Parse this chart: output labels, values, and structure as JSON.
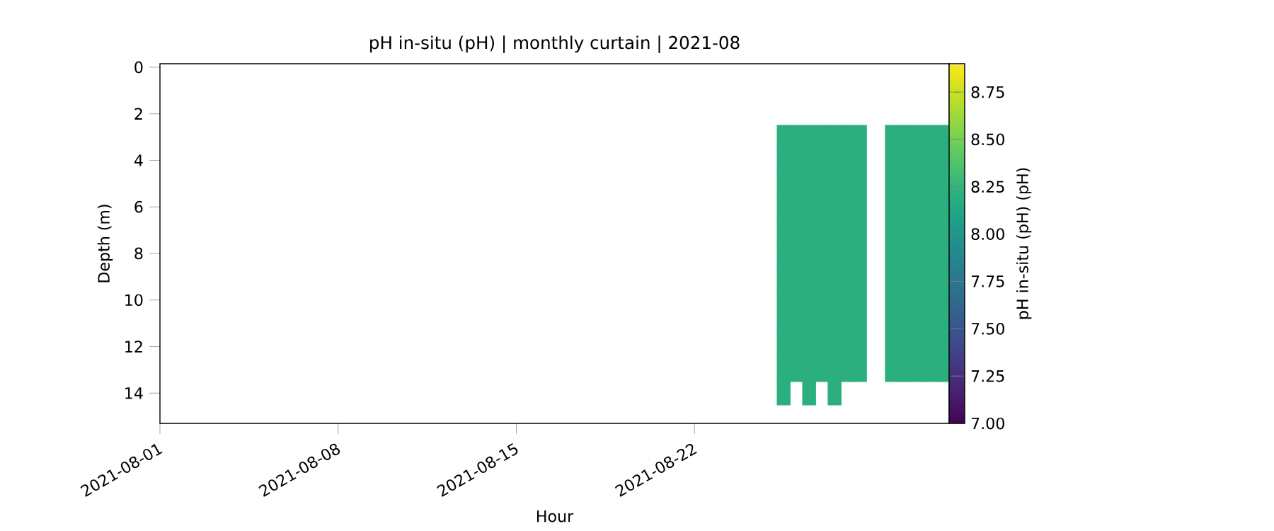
{
  "chart_data": {
    "type": "scatter",
    "title": "pH in-situ (pH) | monthly curtain | 2021-08",
    "xlabel": "Hour",
    "ylabel": "Depth (m)",
    "clabel": "pH in-situ (pH) (pH)",
    "xlim": [
      "2021-08-01",
      "2021-09-01"
    ],
    "xticks": [
      "2021-08-01",
      "2021-08-08",
      "2021-08-15",
      "2021-08-22"
    ],
    "ylim": [
      15.3,
      -0.15
    ],
    "yticks": [
      0,
      2,
      4,
      6,
      8,
      10,
      12,
      14
    ],
    "clim": [
      7.0,
      8.9
    ],
    "cticks": [
      {
        "value": 7.0,
        "label": "7.00"
      },
      {
        "value": 7.25,
        "label": "7.25"
      },
      {
        "value": 7.5,
        "label": "7.50"
      },
      {
        "value": 7.75,
        "label": "7.75"
      },
      {
        "value": 8.0,
        "label": "8.00"
      },
      {
        "value": 8.25,
        "label": "8.25"
      },
      {
        "value": 8.5,
        "label": "8.50"
      },
      {
        "value": 8.75,
        "label": "8.75"
      }
    ],
    "marker": "square",
    "series": [
      {
        "x": [
          "2021-08-25T12:00",
          "2021-08-25T12:00",
          "2021-08-25T12:00",
          "2021-08-25T12:00",
          "2021-08-25T12:00",
          "2021-08-25T12:00",
          "2021-08-25T12:00",
          "2021-08-25T12:00",
          "2021-08-25T12:00",
          "2021-08-25T12:00",
          "2021-08-25T12:00",
          "2021-08-25T12:00"
        ],
        "values": [
          3,
          4,
          5,
          6,
          7,
          8,
          9,
          10,
          11,
          12,
          13,
          14
        ],
        "cvalues": [
          8.2,
          8.2,
          8.2,
          8.2,
          8.2,
          8.2,
          8.2,
          8.2,
          8.2,
          8.2,
          8.2,
          8.2
        ]
      },
      {
        "x": [
          "2021-08-26T00:00",
          "2021-08-26T00:00",
          "2021-08-26T00:00",
          "2021-08-26T00:00",
          "2021-08-26T00:00",
          "2021-08-26T00:00",
          "2021-08-26T00:00",
          "2021-08-26T00:00",
          "2021-08-26T00:00",
          "2021-08-26T00:00",
          "2021-08-26T00:00"
        ],
        "values": [
          3,
          4,
          5,
          6,
          7,
          8,
          9,
          10,
          11,
          12,
          13
        ],
        "cvalues": [
          8.2,
          8.2,
          8.2,
          8.2,
          8.2,
          8.2,
          8.2,
          8.2,
          8.2,
          8.2,
          8.2
        ]
      },
      {
        "x": [
          "2021-08-26T12:00",
          "2021-08-26T12:00",
          "2021-08-26T12:00",
          "2021-08-26T12:00",
          "2021-08-26T12:00",
          "2021-08-26T12:00",
          "2021-08-26T12:00",
          "2021-08-26T12:00",
          "2021-08-26T12:00",
          "2021-08-26T12:00",
          "2021-08-26T12:00",
          "2021-08-26T12:00"
        ],
        "values": [
          3,
          4,
          5,
          6,
          7,
          8,
          9,
          10,
          11,
          12,
          13,
          14
        ],
        "cvalues": [
          8.2,
          8.2,
          8.2,
          8.2,
          8.2,
          8.2,
          8.2,
          8.2,
          8.2,
          8.2,
          8.2,
          8.2
        ]
      },
      {
        "x": [
          "2021-08-27T00:00",
          "2021-08-27T00:00",
          "2021-08-27T00:00",
          "2021-08-27T00:00",
          "2021-08-27T00:00",
          "2021-08-27T00:00",
          "2021-08-27T00:00",
          "2021-08-27T00:00",
          "2021-08-27T00:00",
          "2021-08-27T00:00",
          "2021-08-27T00:00"
        ],
        "values": [
          3,
          4,
          5,
          6,
          7,
          8,
          9,
          10,
          11,
          12,
          13
        ],
        "cvalues": [
          8.2,
          8.2,
          8.2,
          8.2,
          8.2,
          8.2,
          8.2,
          8.2,
          8.2,
          8.2,
          8.2
        ]
      },
      {
        "x": [
          "2021-08-27T12:00",
          "2021-08-27T12:00",
          "2021-08-27T12:00",
          "2021-08-27T12:00",
          "2021-08-27T12:00",
          "2021-08-27T12:00",
          "2021-08-27T12:00",
          "2021-08-27T12:00",
          "2021-08-27T12:00",
          "2021-08-27T12:00",
          "2021-08-27T12:00",
          "2021-08-27T12:00"
        ],
        "values": [
          3,
          4,
          5,
          6,
          7,
          8,
          9,
          10,
          11,
          12,
          13,
          14
        ],
        "cvalues": [
          8.2,
          8.2,
          8.2,
          8.2,
          8.2,
          8.2,
          8.2,
          8.2,
          8.2,
          8.2,
          8.2,
          8.2
        ]
      },
      {
        "x": [
          "2021-08-28T00:00",
          "2021-08-28T00:00",
          "2021-08-28T00:00",
          "2021-08-28T00:00",
          "2021-08-28T00:00",
          "2021-08-28T00:00",
          "2021-08-28T00:00",
          "2021-08-28T00:00",
          "2021-08-28T00:00",
          "2021-08-28T00:00",
          "2021-08-28T00:00"
        ],
        "values": [
          3,
          4,
          5,
          6,
          7,
          8,
          9,
          10,
          11,
          12,
          13
        ],
        "cvalues": [
          8.2,
          8.2,
          8.2,
          8.2,
          8.2,
          8.2,
          8.2,
          8.2,
          8.2,
          8.2,
          8.2
        ]
      },
      {
        "x": [
          "2021-08-28T12:00",
          "2021-08-28T12:00",
          "2021-08-28T12:00",
          "2021-08-28T12:00",
          "2021-08-28T12:00",
          "2021-08-28T12:00",
          "2021-08-28T12:00",
          "2021-08-28T12:00",
          "2021-08-28T12:00",
          "2021-08-28T12:00",
          "2021-08-28T12:00"
        ],
        "values": [
          3,
          4,
          5,
          6,
          7,
          8,
          9,
          10,
          11,
          12,
          13
        ],
        "cvalues": [
          8.2,
          8.2,
          8.2,
          8.2,
          8.2,
          8.2,
          8.2,
          8.2,
          8.2,
          8.2,
          8.2
        ]
      },
      {
        "x": [
          "2021-08-29T18:00",
          "2021-08-29T18:00",
          "2021-08-29T18:00",
          "2021-08-29T18:00",
          "2021-08-29T18:00",
          "2021-08-29T18:00",
          "2021-08-29T18:00",
          "2021-08-29T18:00",
          "2021-08-29T18:00",
          "2021-08-29T18:00",
          "2021-08-29T18:00"
        ],
        "values": [
          3,
          4,
          5,
          6,
          7,
          8,
          9,
          10,
          11,
          12,
          13
        ],
        "cvalues": [
          8.2,
          8.2,
          8.2,
          8.2,
          8.2,
          8.2,
          8.2,
          8.2,
          8.2,
          8.2,
          8.2
        ]
      },
      {
        "x": [
          "2021-08-30T06:00",
          "2021-08-30T06:00",
          "2021-08-30T06:00",
          "2021-08-30T06:00",
          "2021-08-30T06:00",
          "2021-08-30T06:00",
          "2021-08-30T06:00",
          "2021-08-30T06:00",
          "2021-08-30T06:00",
          "2021-08-30T06:00",
          "2021-08-30T06:00"
        ],
        "values": [
          3,
          4,
          5,
          6,
          7,
          8,
          9,
          10,
          11,
          12,
          13
        ],
        "cvalues": [
          8.2,
          8.2,
          8.2,
          8.2,
          8.2,
          8.2,
          8.2,
          8.2,
          8.2,
          8.2,
          8.2
        ]
      },
      {
        "x": [
          "2021-08-30T18:00",
          "2021-08-30T18:00",
          "2021-08-30T18:00",
          "2021-08-30T18:00",
          "2021-08-30T18:00",
          "2021-08-30T18:00",
          "2021-08-30T18:00",
          "2021-08-30T18:00",
          "2021-08-30T18:00",
          "2021-08-30T18:00",
          "2021-08-30T18:00"
        ],
        "values": [
          3,
          4,
          5,
          6,
          7,
          8,
          9,
          10,
          11,
          12,
          13
        ],
        "cvalues": [
          8.2,
          8.2,
          8.2,
          8.2,
          8.2,
          8.2,
          8.2,
          8.2,
          8.2,
          8.2,
          8.2
        ]
      },
      {
        "x": [
          "2021-08-31T06:00",
          "2021-08-31T06:00",
          "2021-08-31T06:00",
          "2021-08-31T06:00",
          "2021-08-31T06:00",
          "2021-08-31T06:00",
          "2021-08-31T06:00",
          "2021-08-31T06:00",
          "2021-08-31T06:00",
          "2021-08-31T06:00",
          "2021-08-31T06:00"
        ],
        "values": [
          3,
          4,
          5,
          6,
          7,
          8,
          9,
          10,
          11,
          12,
          13
        ],
        "cvalues": [
          8.2,
          8.2,
          8.2,
          8.2,
          8.2,
          8.2,
          8.2,
          8.2,
          8.2,
          8.2,
          8.2
        ]
      },
      {
        "x": [
          "2021-08-31T18:00",
          "2021-08-31T18:00",
          "2021-08-31T18:00",
          "2021-08-31T18:00",
          "2021-08-31T18:00",
          "2021-08-31T18:00",
          "2021-08-31T18:00",
          "2021-08-31T18:00",
          "2021-08-31T18:00",
          "2021-08-31T18:00",
          "2021-08-31T18:00"
        ],
        "values": [
          3,
          4,
          5,
          6,
          7,
          8,
          9,
          10,
          11,
          12,
          13
        ],
        "cvalues": [
          8.2,
          8.2,
          8.2,
          8.2,
          8.2,
          8.2,
          8.2,
          8.2,
          8.2,
          8.2,
          8.2
        ]
      }
    ]
  }
}
